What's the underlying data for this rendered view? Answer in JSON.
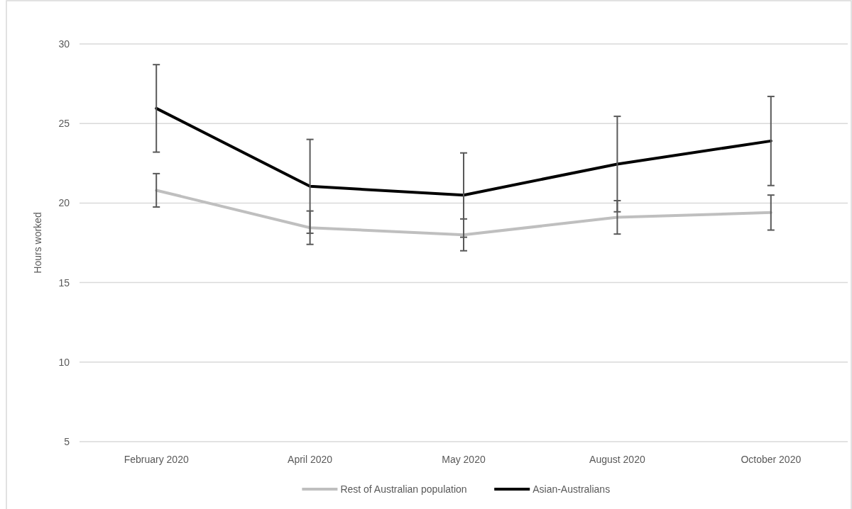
{
  "chart_data": {
    "type": "line",
    "ylabel": "Hours worked",
    "categories": [
      "February 2020",
      "April 2020",
      "May 2020",
      "August 2020",
      "October 2020"
    ],
    "series": [
      {
        "name": "Rest of Australian population",
        "color": "#bfbfbf",
        "values": [
          20.8,
          18.45,
          18.0,
          19.1,
          19.4
        ],
        "errors": [
          1.05,
          1.05,
          1.0,
          1.05,
          1.1
        ]
      },
      {
        "name": "Asian-Australians",
        "color": "#000000",
        "values": [
          25.95,
          21.05,
          20.5,
          22.45,
          23.9
        ],
        "errors": [
          2.75,
          2.95,
          2.65,
          3.0,
          2.8
        ]
      }
    ],
    "ylim": [
      5,
      30
    ],
    "yticks": [
      5,
      10,
      15,
      20,
      25,
      30
    ],
    "grid": "y",
    "legend": "bottom",
    "marker": "none",
    "line_style": "solid"
  }
}
